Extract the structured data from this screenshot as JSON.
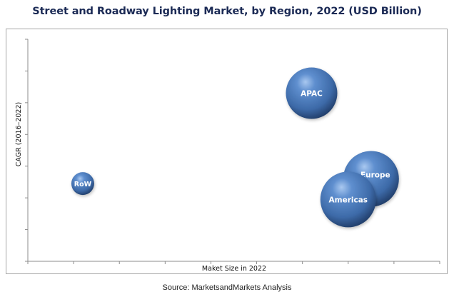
{
  "chart_data": {
    "type": "scatter",
    "subtype": "bubble",
    "title": "Street and Roadway Lighting Market, by Region, 2022 (USD Billion)",
    "xlabel": "Maket Size in 2022",
    "ylabel": "CAGR (2016–2022)",
    "tick_labels_visible": false,
    "xlim": [
      0,
      9
    ],
    "ylim": [
      0,
      7
    ],
    "x_ticks": [
      0,
      1,
      2,
      3,
      4,
      5,
      6,
      7,
      8,
      9
    ],
    "y_ticks": [
      0,
      1,
      2,
      3,
      4,
      5,
      6,
      7
    ],
    "grid": false,
    "legend": "none",
    "series": [
      {
        "name": "APAC",
        "x": 6.2,
        "y": 5.3,
        "size": 36
      },
      {
        "name": "Europe",
        "x": 7.5,
        "y": 2.6,
        "size": 39
      },
      {
        "name": "Americas",
        "x": 7.0,
        "y": 1.95,
        "size": 39
      },
      {
        "name": "RoW",
        "x": 1.2,
        "y": 2.45,
        "size": 16
      }
    ],
    "colors": {
      "bubble_light": "#8fb4e6",
      "bubble_mid": "#4a78b8",
      "bubble_dark": "#1d3b6a",
      "axis": "#8c8c8c",
      "title": "#1b2a55"
    }
  },
  "source": "Source: MarketsandMarkets Analysis"
}
